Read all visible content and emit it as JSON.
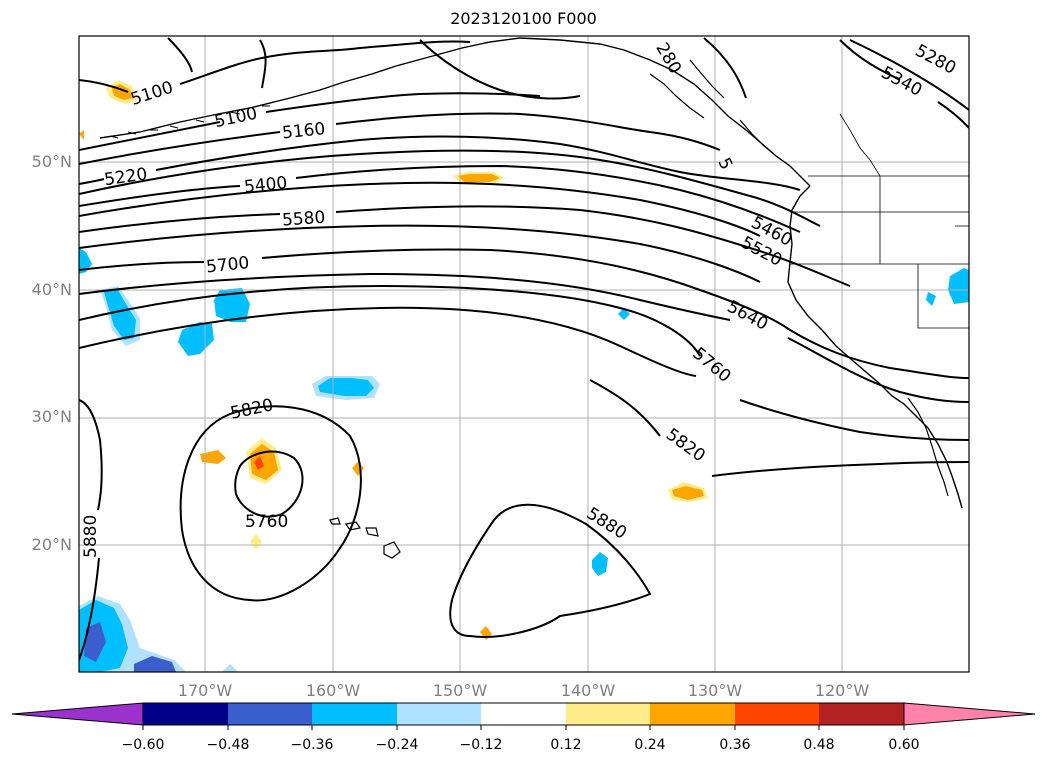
{
  "title": "2023120100 F000",
  "lat_labels": [
    "50°N",
    "40°N",
    "30°N",
    "20°N"
  ],
  "lon_labels": [
    "170°W",
    "160°W",
    "150°W",
    "140°W",
    "130°W",
    "120°W"
  ],
  "contour_labels": [
    "5100",
    "5100",
    "5160",
    "5220",
    "5400",
    "5580",
    "5700",
    "5280",
    "5340",
    "5",
    "5460",
    "5520",
    "5640",
    "5760",
    "5820",
    "5820",
    "5760",
    "5880",
    "5880",
    "280"
  ],
  "colorbar": {
    "ticks": [
      "−0.60",
      "−0.48",
      "−0.36",
      "−0.24",
      "−0.12",
      "0.12",
      "0.24",
      "0.36",
      "0.48",
      "0.60"
    ],
    "colors": [
      "#9b32cd",
      "#00008b",
      "#3a5fcd",
      "#00bfff",
      "#b0e2ff",
      "#ffffff",
      "#ffec8b",
      "#ffa500",
      "#ff4500",
      "#b22222",
      "#ff82ab"
    ]
  },
  "shading_colors": {
    "cyan": "#00bfff",
    "light_blue": "#b0e2ff",
    "royal_blue": "#3a5fcd",
    "orange": "#ffa500",
    "yellow": "#ffec8b",
    "red_orange": "#ff4500"
  }
}
